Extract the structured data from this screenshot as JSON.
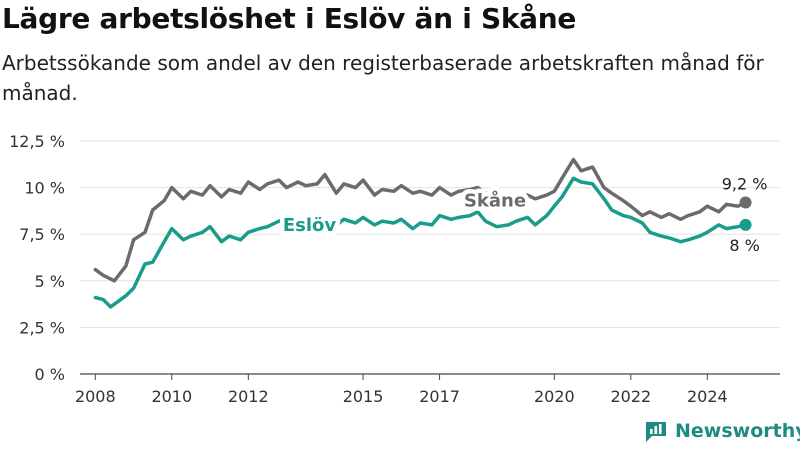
{
  "header": {
    "title": "Lägre arbetslöshet i Eslöv än i Skåne",
    "subtitle": "Arbetssökande som andel av den registerbaserade arbetskraften månad för månad."
  },
  "brand": {
    "name": "Newsworthy",
    "icon": "newsworthy-logo-icon",
    "color": "#1f8a84"
  },
  "chart_data": {
    "type": "line",
    "title": "Lägre arbetslöshet i Eslöv än i Skåne",
    "subtitle": "Arbetssökande som andel av den registerbaserade arbetskraften månad för månad.",
    "xlim": [
      2007.6,
      2025.9
    ],
    "ylim": [
      0,
      12.5
    ],
    "y_ticks": [
      0,
      2.5,
      5,
      7.5,
      10,
      12.5
    ],
    "y_tick_labels": [
      "0 %",
      "2,5 %",
      "5 %",
      "7,5 %",
      "10 %",
      "12,5 %"
    ],
    "x_ticks": [
      2008,
      2010,
      2012,
      2015,
      2017,
      2020,
      2022,
      2024
    ],
    "x_tick_labels": [
      "2008",
      "2010",
      "2012",
      "2015",
      "2017",
      "2020",
      "2022",
      "2024"
    ],
    "grid": true,
    "series": [
      {
        "name": "Skåne",
        "color": "#6d6a6f",
        "end_label": "9,2 %",
        "x": [
          2008.0,
          2008.2,
          2008.5,
          2008.8,
          2009.0,
          2009.3,
          2009.5,
          2009.8,
          2010.0,
          2010.3,
          2010.5,
          2010.8,
          2011.0,
          2011.3,
          2011.5,
          2011.8,
          2012.0,
          2012.3,
          2012.5,
          2012.8,
          2013.0,
          2013.3,
          2013.5,
          2013.8,
          2014.0,
          2014.3,
          2014.5,
          2014.8,
          2015.0,
          2015.3,
          2015.5,
          2015.8,
          2016.0,
          2016.3,
          2016.5,
          2016.8,
          2017.0,
          2017.3,
          2017.5,
          2017.8,
          2018.0,
          2018.2,
          2018.5,
          2018.8,
          2019.0,
          2019.3,
          2019.5,
          2019.8,
          2020.0,
          2020.2,
          2020.5,
          2020.7,
          2021.0,
          2021.3,
          2021.5,
          2021.8,
          2022.0,
          2022.3,
          2022.5,
          2022.8,
          2023.0,
          2023.3,
          2023.5,
          2023.8,
          2024.0,
          2024.3,
          2024.5,
          2024.8,
          2025.0
        ],
        "y": [
          5.6,
          5.3,
          5.0,
          5.8,
          7.2,
          7.6,
          8.8,
          9.3,
          10.0,
          9.4,
          9.8,
          9.6,
          10.1,
          9.5,
          9.9,
          9.7,
          10.3,
          9.9,
          10.2,
          10.4,
          10.0,
          10.3,
          10.1,
          10.2,
          10.7,
          9.7,
          10.2,
          10.0,
          10.4,
          9.6,
          9.9,
          9.8,
          10.1,
          9.7,
          9.8,
          9.6,
          10.0,
          9.6,
          9.8,
          9.9,
          10.0,
          9.7,
          9.4,
          9.3,
          9.5,
          9.6,
          9.4,
          9.6,
          9.8,
          10.5,
          11.5,
          10.9,
          11.1,
          10.0,
          9.7,
          9.3,
          9.0,
          8.5,
          8.7,
          8.4,
          8.6,
          8.3,
          8.5,
          8.7,
          9.0,
          8.7,
          9.1,
          9.0,
          9.2
        ]
      },
      {
        "name": "Eslöv",
        "color": "#1a9c8b",
        "end_label": "8 %",
        "x": [
          2008.0,
          2008.2,
          2008.4,
          2008.6,
          2008.8,
          2009.0,
          2009.3,
          2009.5,
          2009.8,
          2010.0,
          2010.3,
          2010.5,
          2010.8,
          2011.0,
          2011.3,
          2011.5,
          2011.8,
          2012.0,
          2012.3,
          2012.5,
          2012.8,
          2013.0,
          2013.3,
          2013.5,
          2013.8,
          2014.0,
          2014.3,
          2014.5,
          2014.8,
          2015.0,
          2015.3,
          2015.5,
          2015.8,
          2016.0,
          2016.3,
          2016.5,
          2016.8,
          2017.0,
          2017.3,
          2017.5,
          2017.8,
          2018.0,
          2018.2,
          2018.5,
          2018.8,
          2019.0,
          2019.3,
          2019.5,
          2019.8,
          2020.0,
          2020.2,
          2020.5,
          2020.7,
          2021.0,
          2021.3,
          2021.5,
          2021.8,
          2022.0,
          2022.3,
          2022.5,
          2022.8,
          2023.0,
          2023.3,
          2023.5,
          2023.8,
          2024.0,
          2024.3,
          2024.5,
          2024.8,
          2025.0
        ],
        "y": [
          4.1,
          4.0,
          3.6,
          3.9,
          4.2,
          4.6,
          5.9,
          6.0,
          7.1,
          7.8,
          7.2,
          7.4,
          7.6,
          7.9,
          7.1,
          7.4,
          7.2,
          7.6,
          7.8,
          7.9,
          8.2,
          8.3,
          7.8,
          8.0,
          8.1,
          8.2,
          8.0,
          8.3,
          8.1,
          8.4,
          8.0,
          8.2,
          8.1,
          8.3,
          7.8,
          8.1,
          8.0,
          8.5,
          8.3,
          8.4,
          8.5,
          8.7,
          8.2,
          7.9,
          8.0,
          8.2,
          8.4,
          8.0,
          8.5,
          9.0,
          9.5,
          10.5,
          10.3,
          10.2,
          9.4,
          8.8,
          8.5,
          8.4,
          8.1,
          7.6,
          7.4,
          7.3,
          7.1,
          7.2,
          7.4,
          7.6,
          8.0,
          7.8,
          7.9,
          8.0
        ]
      }
    ]
  }
}
